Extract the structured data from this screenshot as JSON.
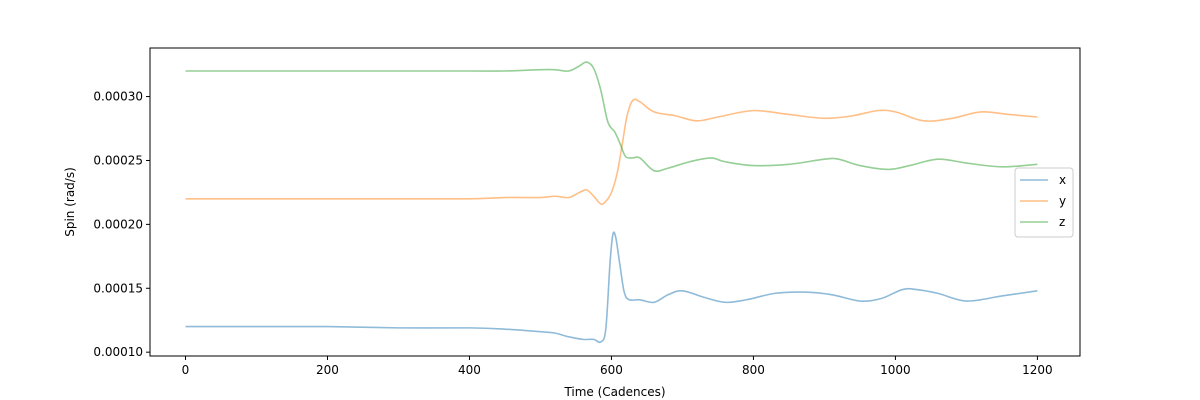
{
  "chart_data": {
    "type": "line",
    "title": "",
    "xlabel": "Time (Cadences)",
    "ylabel": "Spin (rad/s)",
    "xlim": [
      -50,
      1260
    ],
    "ylim": [
      9.7e-05,
      0.000338
    ],
    "xticks": [
      0,
      200,
      400,
      600,
      800,
      1000,
      1200
    ],
    "xtick_labels": [
      "0",
      "200",
      "400",
      "600",
      "800",
      "1000",
      "1200"
    ],
    "yticks": [
      0.0001,
      0.00015,
      0.0002,
      0.00025,
      0.0003
    ],
    "ytick_labels": [
      "0.00010",
      "0.00015",
      "0.00020",
      "0.00025",
      "0.00030"
    ],
    "grid": false,
    "legend": {
      "position": "center-right",
      "entries": [
        "x",
        "y",
        "z"
      ]
    },
    "series": [
      {
        "name": "x",
        "color": "#1f77b4",
        "alpha": 0.5,
        "points": [
          [
            0,
            0.00012
          ],
          [
            100,
            0.00012
          ],
          [
            200,
            0.00012
          ],
          [
            300,
            0.000119
          ],
          [
            400,
            0.000119
          ],
          [
            450,
            0.000118
          ],
          [
            500,
            0.000116
          ],
          [
            520,
            0.000115
          ],
          [
            540,
            0.000112
          ],
          [
            560,
            0.00011
          ],
          [
            575,
            0.00011
          ],
          [
            585,
            0.000108
          ],
          [
            592,
            0.000118
          ],
          [
            598,
            0.00017
          ],
          [
            602,
            0.000192
          ],
          [
            606,
            0.00019
          ],
          [
            612,
            0.000168
          ],
          [
            618,
            0.000147
          ],
          [
            625,
            0.000141
          ],
          [
            640,
            0.000141
          ],
          [
            660,
            0.000139
          ],
          [
            680,
            0.000145
          ],
          [
            700,
            0.000148
          ],
          [
            730,
            0.000143
          ],
          [
            760,
            0.000139
          ],
          [
            790,
            0.000141
          ],
          [
            830,
            0.000146
          ],
          [
            870,
            0.000147
          ],
          [
            910,
            0.000145
          ],
          [
            950,
            0.00014
          ],
          [
            980,
            0.000142
          ],
          [
            1010,
            0.000149
          ],
          [
            1030,
            0.000149
          ],
          [
            1060,
            0.000146
          ],
          [
            1100,
            0.00014
          ],
          [
            1150,
            0.000144
          ],
          [
            1200,
            0.000148
          ]
        ]
      },
      {
        "name": "y",
        "color": "#ff7f0e",
        "alpha": 0.5,
        "points": [
          [
            0,
            0.00022
          ],
          [
            100,
            0.00022
          ],
          [
            200,
            0.00022
          ],
          [
            300,
            0.00022
          ],
          [
            400,
            0.00022
          ],
          [
            450,
            0.000221
          ],
          [
            500,
            0.000221
          ],
          [
            520,
            0.000222
          ],
          [
            540,
            0.000221
          ],
          [
            555,
            0.000225
          ],
          [
            565,
            0.000227
          ],
          [
            575,
            0.000222
          ],
          [
            585,
            0.000216
          ],
          [
            592,
            0.000218
          ],
          [
            600,
            0.000225
          ],
          [
            608,
            0.00024
          ],
          [
            615,
            0.000262
          ],
          [
            622,
            0.000285
          ],
          [
            630,
            0.000297
          ],
          [
            640,
            0.000296
          ],
          [
            660,
            0.000288
          ],
          [
            690,
            0.000285
          ],
          [
            720,
            0.000281
          ],
          [
            750,
            0.000284
          ],
          [
            800,
            0.000289
          ],
          [
            850,
            0.000286
          ],
          [
            900,
            0.000283
          ],
          [
            940,
            0.000285
          ],
          [
            975,
            0.000289
          ],
          [
            1000,
            0.000288
          ],
          [
            1040,
            0.000281
          ],
          [
            1080,
            0.000283
          ],
          [
            1120,
            0.000288
          ],
          [
            1160,
            0.000286
          ],
          [
            1200,
            0.000284
          ]
        ]
      },
      {
        "name": "z",
        "color": "#2ca02c",
        "alpha": 0.5,
        "points": [
          [
            0,
            0.00032
          ],
          [
            100,
            0.00032
          ],
          [
            200,
            0.00032
          ],
          [
            300,
            0.00032
          ],
          [
            400,
            0.00032
          ],
          [
            450,
            0.00032
          ],
          [
            500,
            0.000321
          ],
          [
            520,
            0.000321
          ],
          [
            540,
            0.00032
          ],
          [
            555,
            0.000324
          ],
          [
            565,
            0.000327
          ],
          [
            575,
            0.000322
          ],
          [
            585,
            0.000305
          ],
          [
            595,
            0.00028
          ],
          [
            605,
            0.000272
          ],
          [
            613,
            0.000262
          ],
          [
            620,
            0.000253
          ],
          [
            630,
            0.000252
          ],
          [
            640,
            0.000252
          ],
          [
            660,
            0.000242
          ],
          [
            680,
            0.000244
          ],
          [
            710,
            0.000249
          ],
          [
            740,
            0.000252
          ],
          [
            760,
            0.000249
          ],
          [
            800,
            0.000246
          ],
          [
            850,
            0.000247
          ],
          [
            900,
            0.000251
          ],
          [
            920,
            0.000251
          ],
          [
            950,
            0.000246
          ],
          [
            990,
            0.000243
          ],
          [
            1020,
            0.000246
          ],
          [
            1060,
            0.000251
          ],
          [
            1100,
            0.000248
          ],
          [
            1150,
            0.000245
          ],
          [
            1200,
            0.000247
          ]
        ]
      }
    ]
  }
}
